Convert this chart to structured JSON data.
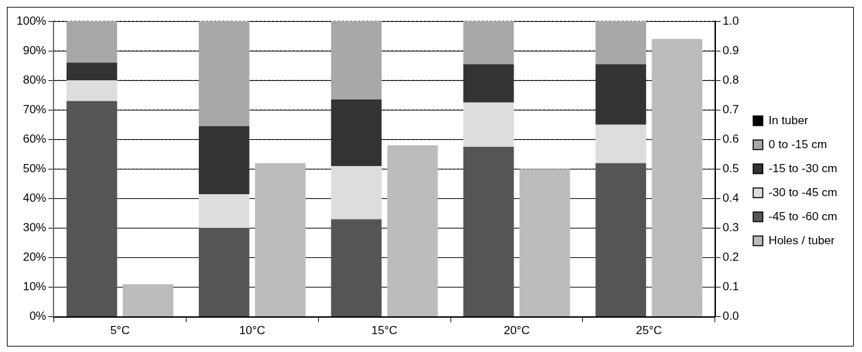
{
  "chart_data": {
    "type": "bar",
    "stacked": true,
    "categories": [
      "5°C",
      "10°C",
      "15°C",
      "20°C",
      "25°C"
    ],
    "series": [
      {
        "name": "-45 to -60 cm",
        "color": "#555555",
        "values": [
          73,
          30,
          33,
          57.5,
          52
        ]
      },
      {
        "name": "-30 to -45 cm",
        "color": "#dddddd",
        "values": [
          7,
          11.5,
          18,
          15,
          13
        ]
      },
      {
        "name": "-15 to -30 cm",
        "color": "#333333",
        "values": [
          6,
          23,
          22.5,
          13,
          20.5
        ]
      },
      {
        "name": "0 to -15 cm",
        "color": "#a8a8a8",
        "values": [
          14,
          35.5,
          26.5,
          14.5,
          14.5
        ]
      },
      {
        "name": "In tuber",
        "color": "#000000",
        "values": [
          0,
          0,
          0,
          0,
          0
        ]
      },
      {
        "name": "Holes / tuber",
        "color": "#bcbcbc",
        "axis": "y2",
        "values": [
          0.11,
          0.52,
          0.58,
          0.5,
          0.94
        ]
      }
    ],
    "ylim": [
      0,
      100
    ],
    "yticks": [
      {
        "value": 0,
        "label": "0%"
      },
      {
        "value": 10,
        "label": "10%"
      },
      {
        "value": 20,
        "label": "20%"
      },
      {
        "value": 30,
        "label": "30%"
      },
      {
        "value": 40,
        "label": "40%"
      },
      {
        "value": 50,
        "label": "50%"
      },
      {
        "value": 60,
        "label": "60%"
      },
      {
        "value": 70,
        "label": "70%"
      },
      {
        "value": 80,
        "label": "80%"
      },
      {
        "value": 90,
        "label": "90%"
      },
      {
        "value": 100,
        "label": "100%"
      }
    ],
    "y2lim": [
      0,
      1
    ],
    "y2ticks": [
      {
        "value": 0,
        "label": "0.0"
      },
      {
        "value": 0.1,
        "label": "0.1"
      },
      {
        "value": 0.2,
        "label": "0.2"
      },
      {
        "value": 0.3,
        "label": "0.3"
      },
      {
        "value": 0.4,
        "label": "0.4"
      },
      {
        "value": 0.5,
        "label": "0.5"
      },
      {
        "value": 0.6,
        "label": "0.6"
      },
      {
        "value": 0.7,
        "label": "0.7"
      },
      {
        "value": 0.8,
        "label": "0.8"
      },
      {
        "value": 0.9,
        "label": "0.9"
      },
      {
        "value": 1,
        "label": "1.0"
      }
    ],
    "grid": "y",
    "legend": "right"
  }
}
